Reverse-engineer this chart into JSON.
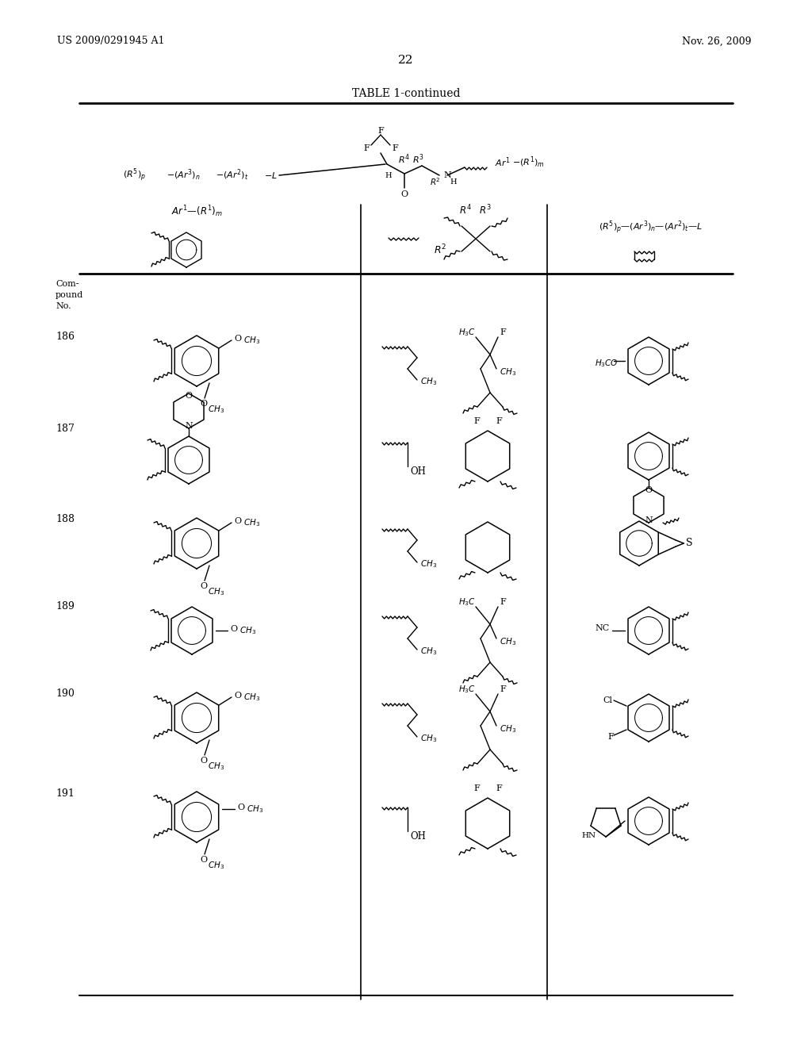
{
  "page_number": "22",
  "patent_number": "US 2009/0291945 A1",
  "patent_date": "Nov. 26, 2009",
  "table_title": "TABLE 1-continued",
  "background_color": "#ffffff",
  "text_color": "#000000",
  "compound_numbers": [
    "186",
    "187",
    "188",
    "189",
    "190",
    "191"
  ],
  "fig_width": 10.24,
  "fig_height": 13.2,
  "row_centers_y": [
    455,
    570,
    685,
    795,
    905,
    1030
  ]
}
